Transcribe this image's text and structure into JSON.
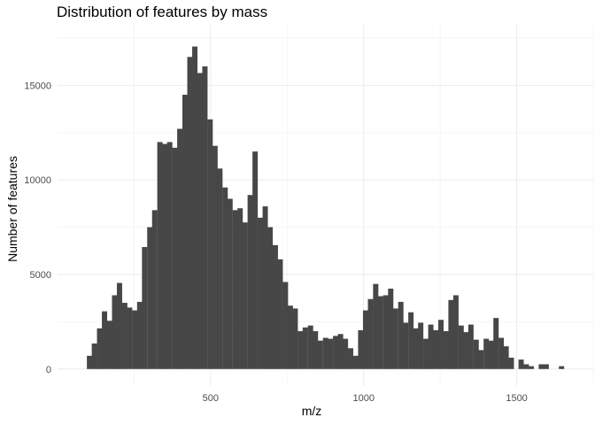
{
  "chart_data": {
    "type": "bar",
    "title": "Distribution of features by mass",
    "xlabel": "m/z",
    "ylabel": "Number of features",
    "bin_width": 16.4,
    "x": [
      104,
      120,
      137,
      153,
      170,
      186,
      202,
      219,
      235,
      252,
      268,
      284,
      301,
      317,
      334,
      350,
      366,
      383,
      399,
      416,
      432,
      448,
      465,
      481,
      498,
      514,
      530,
      547,
      563,
      580,
      596,
      612,
      629,
      645,
      662,
      678,
      694,
      711,
      727,
      744,
      760,
      776,
      793,
      809,
      826,
      842,
      858,
      875,
      891,
      908,
      924,
      940,
      957,
      973,
      990,
      1006,
      1022,
      1039,
      1055,
      1072,
      1088,
      1104,
      1121,
      1137,
      1154,
      1170,
      1186,
      1203,
      1219,
      1236,
      1252,
      1268,
      1285,
      1301,
      1318,
      1334,
      1350,
      1367,
      1383,
      1400,
      1416,
      1432,
      1449,
      1465,
      1482,
      1498,
      1514,
      1531,
      1547,
      1564,
      1580,
      1596,
      1613,
      1629,
      1646,
      1662,
      1678
    ],
    "values": [
      700,
      1350,
      2150,
      3050,
      2550,
      3900,
      4550,
      3500,
      3250,
      3100,
      3550,
      6450,
      7500,
      8400,
      12000,
      11900,
      12000,
      11700,
      12700,
      14500,
      16500,
      17050,
      15650,
      16000,
      13200,
      11800,
      10600,
      9600,
      9000,
      8400,
      8500,
      7750,
      9200,
      11500,
      8000,
      8600,
      7500,
      6550,
      5800,
      4600,
      3350,
      3200,
      2000,
      2200,
      2300,
      2000,
      1500,
      1650,
      1600,
      1750,
      1850,
      1600,
      1100,
      700,
      2050,
      3100,
      3700,
      4500,
      3850,
      3900,
      4250,
      3200,
      3550,
      2450,
      3000,
      2150,
      2450,
      1600,
      2350,
      2050,
      2600,
      2000,
      3650,
      3900,
      2300,
      1950,
      2350,
      1550,
      1000,
      1600,
      1500,
      2700,
      1650,
      1200,
      600,
      0,
      500,
      250,
      150,
      0,
      250,
      250,
      0,
      0,
      150,
      0,
      0
    ],
    "xlim": [
      0,
      1750
    ],
    "ylim": [
      -900,
      18200
    ],
    "x_ticks": [
      500,
      1000,
      1500
    ],
    "y_ticks": [
      0,
      5000,
      10000,
      15000
    ],
    "grid": true,
    "legend": "none",
    "colors": {
      "bar": "#474747",
      "grid_major": "#ebebeb",
      "grid_minor": "#f5f5f5",
      "tick_text": "#4d4d4d"
    }
  }
}
